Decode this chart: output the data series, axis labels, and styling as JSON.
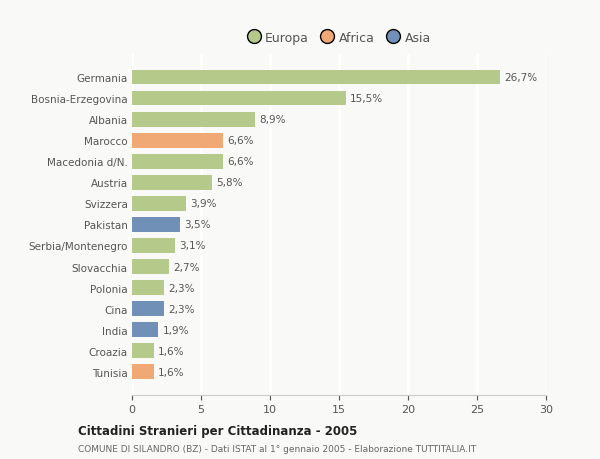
{
  "categories": [
    "Germania",
    "Bosnia-Erzegovina",
    "Albania",
    "Marocco",
    "Macedonia d/N.",
    "Austria",
    "Svizzera",
    "Pakistan",
    "Serbia/Montenegro",
    "Slovacchia",
    "Polonia",
    "Cina",
    "India",
    "Croazia",
    "Tunisia"
  ],
  "values": [
    26.7,
    15.5,
    8.9,
    6.6,
    6.6,
    5.8,
    3.9,
    3.5,
    3.1,
    2.7,
    2.3,
    2.3,
    1.9,
    1.6,
    1.6
  ],
  "labels": [
    "26,7%",
    "15,5%",
    "8,9%",
    "6,6%",
    "6,6%",
    "5,8%",
    "3,9%",
    "3,5%",
    "3,1%",
    "2,7%",
    "2,3%",
    "2,3%",
    "1,9%",
    "1,6%",
    "1,6%"
  ],
  "colors": [
    "#b5c98a",
    "#b5c98a",
    "#b5c98a",
    "#f0a875",
    "#b5c98a",
    "#b5c98a",
    "#b5c98a",
    "#7090b8",
    "#b5c98a",
    "#b5c98a",
    "#b5c98a",
    "#7090b8",
    "#7090b8",
    "#b5c98a",
    "#f0a875"
  ],
  "legend_labels": [
    "Europa",
    "Africa",
    "Asia"
  ],
  "legend_colors": [
    "#b5c98a",
    "#f0a875",
    "#7090b8"
  ],
  "title1": "Cittadini Stranieri per Cittadinanza - 2005",
  "title2": "COMUNE DI SILANDRO (BZ) - Dati ISTAT al 1° gennaio 2005 - Elaborazione TUTTITALIA.IT",
  "xlim": [
    0,
    30
  ],
  "xticks": [
    0,
    5,
    10,
    15,
    20,
    25,
    30
  ],
  "background_color": "#f9f9f7",
  "grid_color": "#ffffff",
  "bar_height": 0.7
}
